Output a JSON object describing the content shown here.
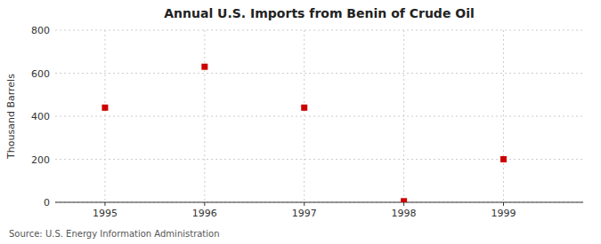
{
  "chart_data": {
    "type": "scatter",
    "title": "Annual U.S. Imports from Benin of Crude Oil",
    "y_label": "Thousand Barrels",
    "source": "Source: U.S. Energy Information Administration",
    "x": [
      1995,
      1996,
      1997,
      1998,
      1999
    ],
    "values": [
      440,
      630,
      440,
      5,
      200
    ],
    "color": "#cc0000",
    "marker": "square",
    "xlim": [
      1994.5,
      1999.8
    ],
    "ylim": [
      0,
      800
    ],
    "xticks": [
      1995,
      1996,
      1997,
      1998,
      1999
    ],
    "yticks": [
      0,
      200,
      400,
      600,
      800
    ],
    "grid": true
  }
}
